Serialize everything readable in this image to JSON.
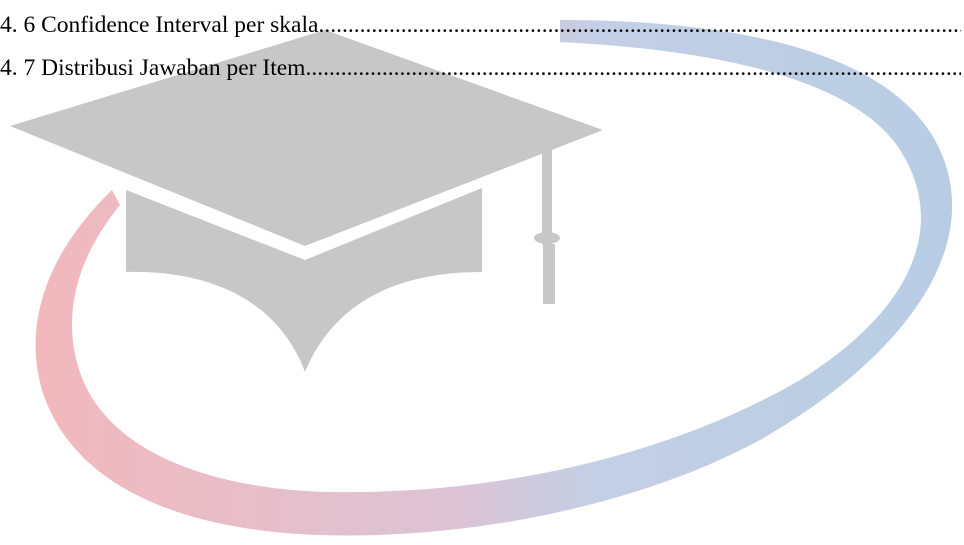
{
  "toc": {
    "entries": [
      {
        "label": "4. 6 Confidence Interval per skala"
      },
      {
        "label": "4. 7 Distribusi Jawaban per Item"
      }
    ]
  },
  "watermark": {
    "icon": "graduation-cap-logo",
    "colors": {
      "cap": "#c7c7c7",
      "swoosh_left": "#f2b8bd",
      "swoosh_right": "#b7cde5"
    }
  }
}
